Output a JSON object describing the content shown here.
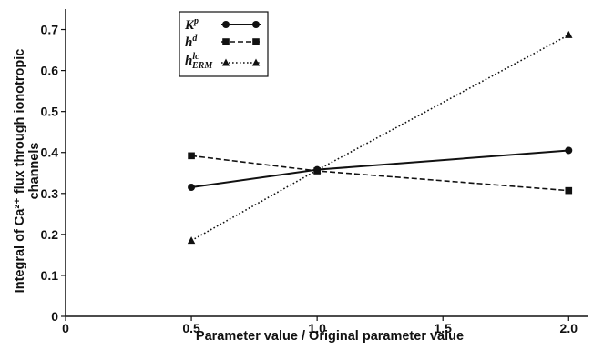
{
  "chart_data": {
    "type": "line",
    "title": "",
    "xlabel": "Parameter value / Original parameter value",
    "ylabel_lines": [
      "Integral of Ca²⁺ flux through ionotropic",
      "channels"
    ],
    "xlim": [
      0,
      2.0
    ],
    "ylim": [
      0,
      0.75
    ],
    "x_ticks": [
      "0",
      "0.5",
      "1.0",
      "1.5",
      "2.0"
    ],
    "y_ticks": [
      "0",
      "0.1",
      "0.2",
      "0.3",
      "0.4",
      "0.5",
      "0.6",
      "0.7"
    ],
    "x": [
      0.5,
      1.0,
      2.0
    ],
    "grid": false,
    "legend_position": "top-left",
    "series": [
      {
        "name_base": "K",
        "name_sup": "p",
        "name_sub": "",
        "values": [
          0.315,
          0.358,
          0.405
        ],
        "line_style": "solid",
        "marker": "circle",
        "color": "#111111"
      },
      {
        "name_base": "h",
        "name_sup": "d",
        "name_sub": "",
        "values": [
          0.392,
          0.355,
          0.307
        ],
        "line_style": "dashed",
        "marker": "square",
        "color": "#111111"
      },
      {
        "name_base": "h",
        "name_sup": "lc",
        "name_sub": "ERM",
        "values": [
          0.185,
          0.357,
          0.687
        ],
        "line_style": "dotted",
        "marker": "triangle",
        "color": "#111111"
      }
    ]
  }
}
